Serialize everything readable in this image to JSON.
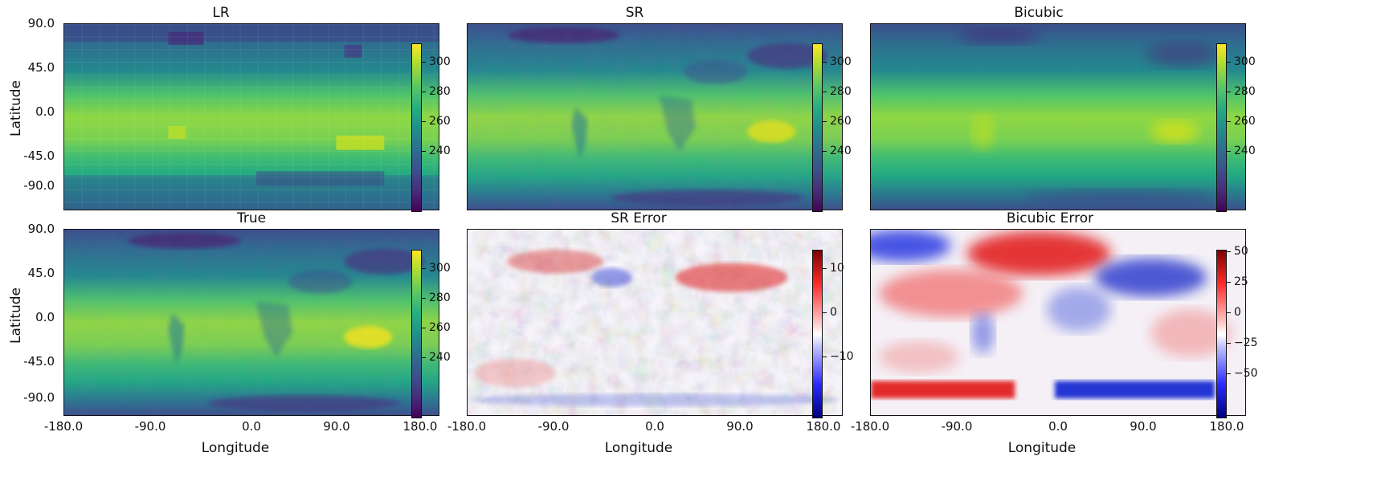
{
  "panels": [
    {
      "title": "LR",
      "colormap": "viridis",
      "colorbar_ticks": [
        "300",
        "280",
        "260",
        "240"
      ]
    },
    {
      "title": "SR",
      "colormap": "viridis",
      "colorbar_ticks": [
        "300",
        "280",
        "260",
        "240"
      ]
    },
    {
      "title": "Bicubic",
      "colormap": "viridis",
      "colorbar_ticks": [
        "300",
        "280",
        "260",
        "240"
      ]
    },
    {
      "title": "True",
      "colormap": "viridis",
      "colorbar_ticks": [
        "300",
        "280",
        "260",
        "240"
      ]
    },
    {
      "title": "SR Error",
      "colormap": "bwr",
      "colorbar_ticks": [
        "10",
        "0",
        "−10"
      ]
    },
    {
      "title": "Bicubic Error",
      "colormap": "bwr",
      "colorbar_ticks": [
        "50",
        "25",
        "0",
        "−25",
        "−50"
      ]
    }
  ],
  "axes": {
    "ylabel": "Latitude",
    "xlabel": "Longitude",
    "yticks": [
      "90.0",
      "45.0",
      "0.0",
      "-45.0",
      "-90.0"
    ],
    "xticks": [
      "-180.0",
      "-90.0",
      "0.0",
      "90.0",
      "180.0"
    ]
  }
}
